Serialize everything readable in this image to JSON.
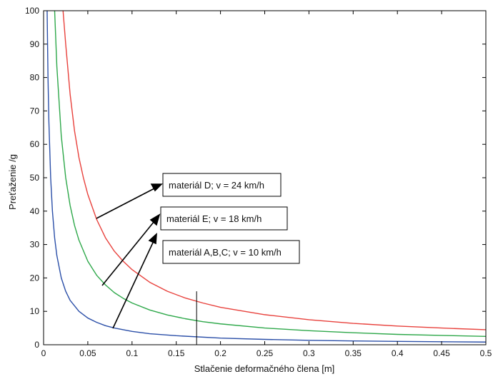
{
  "chart_data": {
    "type": "line",
    "title": "",
    "xlabel": "Stlačenie deformačného člena  [m]",
    "ylabel": "Preťaženie /g",
    "xlim": [
      0,
      0.5
    ],
    "ylim": [
      0,
      100
    ],
    "xticks": [
      0,
      0.05,
      0.1,
      0.15,
      0.2,
      0.25,
      0.3,
      0.35,
      0.4,
      0.45,
      0.5
    ],
    "xtick_labels": [
      "0",
      "0.05",
      "0.1",
      "0.15",
      "0.2",
      "0.25",
      "0.3",
      "0.35",
      "0.4",
      "0.45",
      "0.5"
    ],
    "yticks": [
      0,
      10,
      20,
      30,
      40,
      50,
      60,
      70,
      80,
      90,
      100
    ],
    "ytick_labels": [
      "0",
      "10",
      "20",
      "30",
      "40",
      "50",
      "60",
      "70",
      "80",
      "90",
      "100"
    ],
    "grid": false,
    "series": [
      {
        "color": "#e8413c",
        "x": [
          0.022,
          0.025,
          0.03,
          0.035,
          0.04,
          0.045,
          0.05,
          0.06,
          0.07,
          0.08,
          0.09,
          0.1,
          0.12,
          0.14,
          0.16,
          0.18,
          0.2,
          0.25,
          0.3,
          0.35,
          0.4,
          0.45,
          0.5
        ],
        "y": [
          100,
          90,
          75,
          64,
          56,
          50,
          45,
          37.5,
          32,
          28,
          25,
          22.5,
          18.7,
          16,
          14,
          12.5,
          11.2,
          9,
          7.5,
          6.4,
          5.6,
          5,
          4.5
        ]
      },
      {
        "color": "#2ea84a",
        "x": [
          0.0125,
          0.015,
          0.02,
          0.025,
          0.03,
          0.035,
          0.04,
          0.05,
          0.06,
          0.07,
          0.08,
          0.09,
          0.1,
          0.12,
          0.14,
          0.16,
          0.18,
          0.2,
          0.25,
          0.3,
          0.35,
          0.4,
          0.45,
          0.5
        ],
        "y": [
          100,
          83.3,
          62.5,
          50,
          41.7,
          35.7,
          31.3,
          25,
          20.8,
          17.9,
          15.6,
          13.9,
          12.5,
          10.4,
          8.9,
          7.8,
          6.9,
          6.25,
          5,
          4.2,
          3.6,
          3.1,
          2.8,
          2.5
        ]
      },
      {
        "color": "#2b4fa8",
        "x": [
          0.004,
          0.005,
          0.006,
          0.008,
          0.01,
          0.0125,
          0.015,
          0.02,
          0.025,
          0.03,
          0.04,
          0.05,
          0.06,
          0.07,
          0.08,
          0.1,
          0.12,
          0.15,
          0.2,
          0.25,
          0.3,
          0.35,
          0.4,
          0.45,
          0.5
        ],
        "y": [
          100,
          80,
          66.7,
          50,
          40,
          32,
          26.7,
          20,
          16,
          13.3,
          10,
          8,
          6.7,
          5.7,
          5,
          4,
          3.3,
          2.7,
          2,
          1.6,
          1.33,
          1.14,
          1,
          0.89,
          0.8
        ]
      }
    ],
    "vline": {
      "x": 0.173,
      "y_from": 0,
      "y_to": 16
    },
    "annotations": [
      {
        "text": "materiál  D; v = 24 km/h"
      },
      {
        "text": "materiál E;  v = 18 km/h"
      },
      {
        "text": "materiál A,B,C; v = 10 km/h"
      }
    ]
  }
}
